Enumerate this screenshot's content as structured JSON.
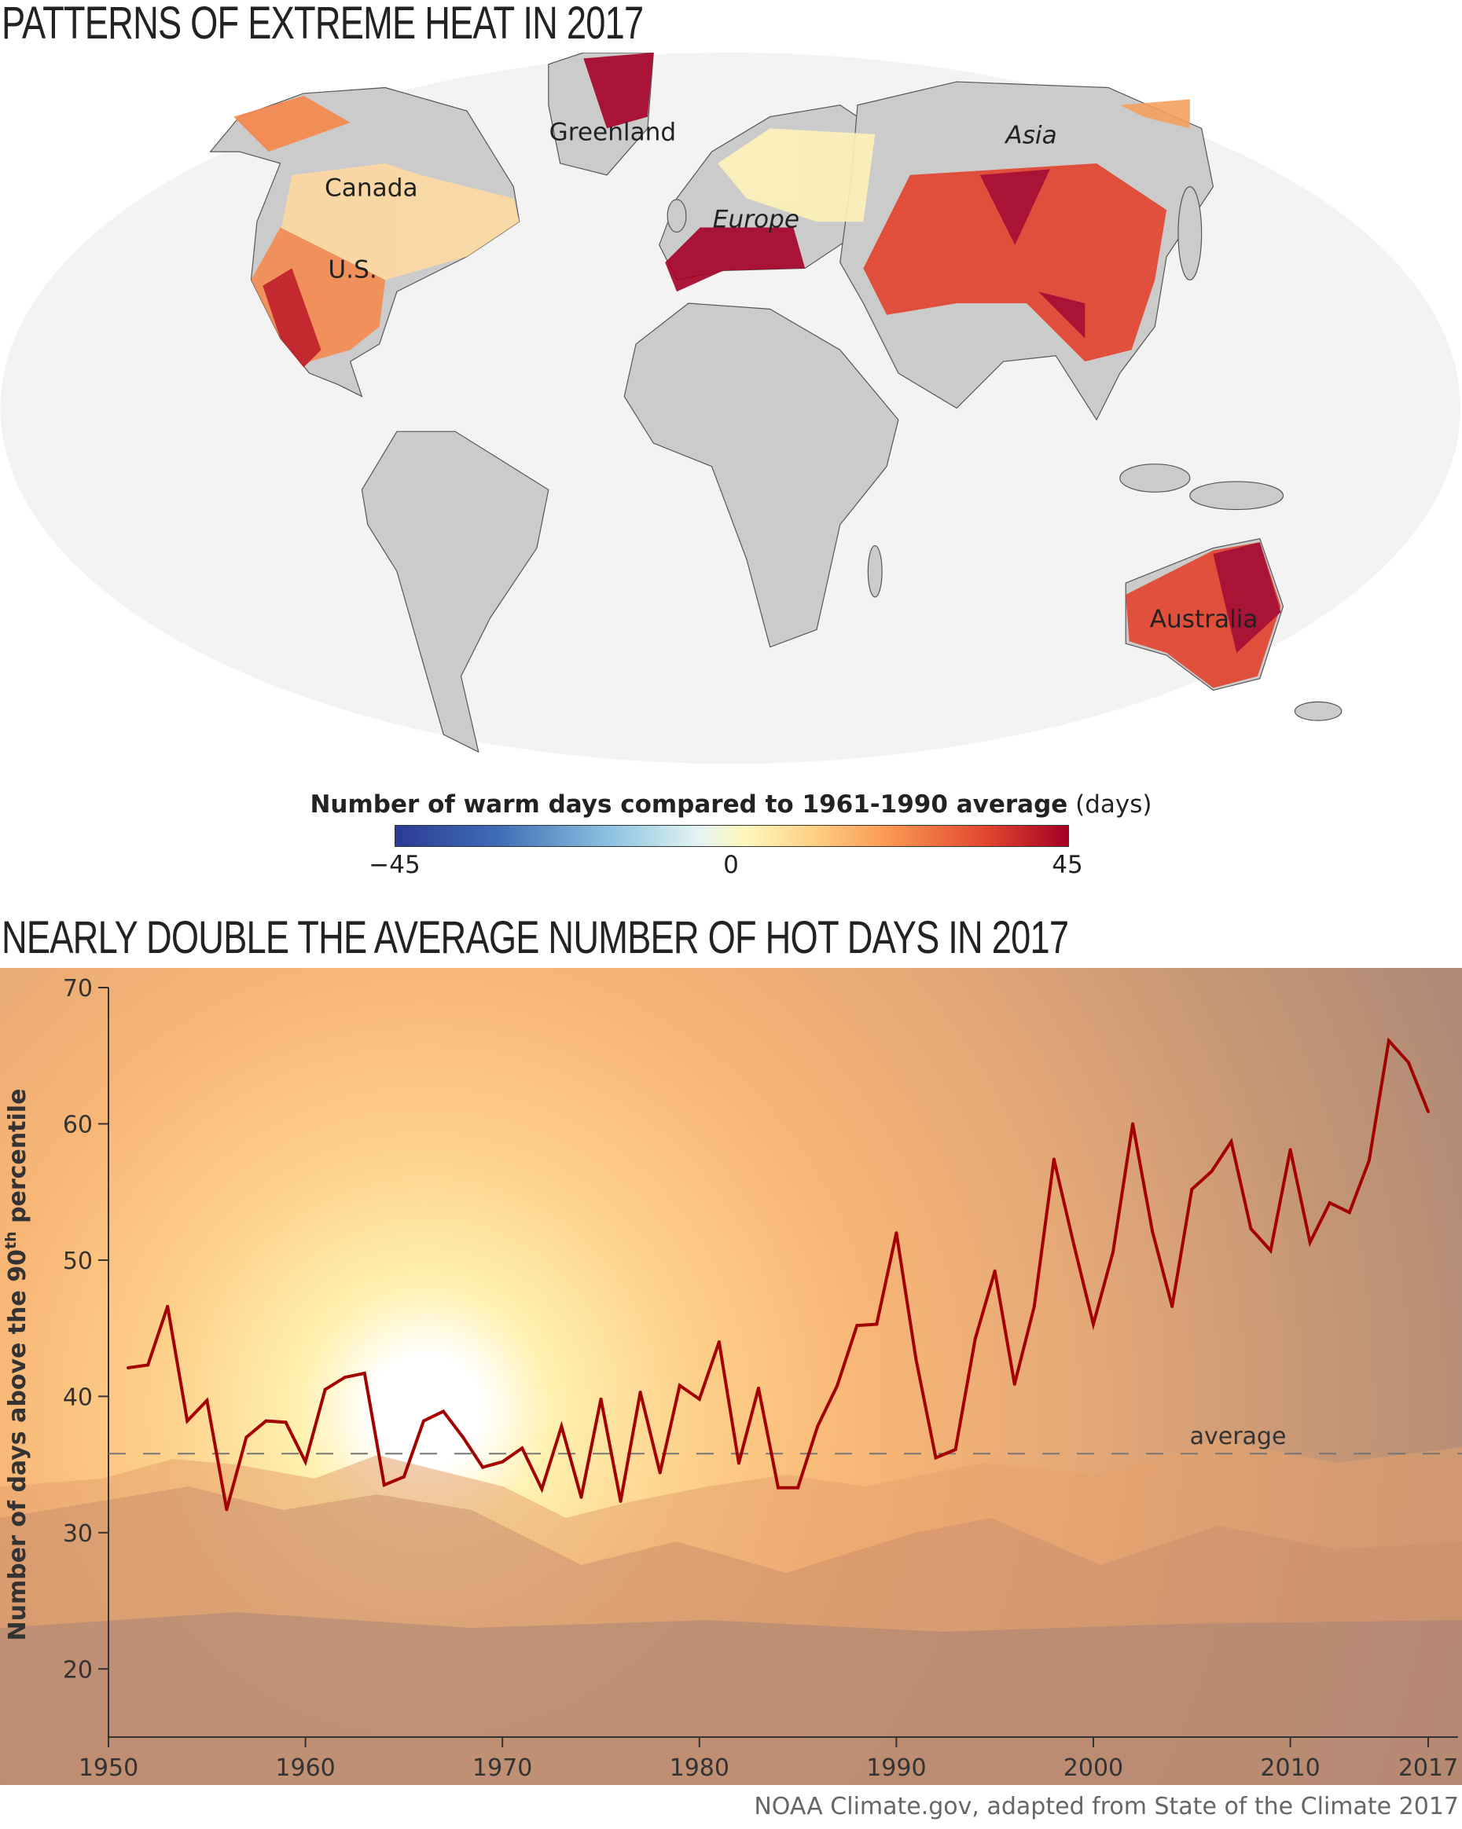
{
  "map": {
    "title": "PATTERNS OF EXTREME HEAT IN 2017",
    "labels": [
      "Greenland",
      "Canada",
      "U.S.",
      "Europe",
      "Asia",
      "Australia"
    ],
    "colorbar": {
      "title_bold": "Number of warm days compared to 1961-1990 average",
      "title_unit": "(days)",
      "ticks": [
        "−45",
        "0",
        "45"
      ],
      "range": [
        -45,
        45
      ]
    }
  },
  "chart_data": {
    "type": "line",
    "title": "NEARLY DOUBLE THE AVERAGE NUMBER OF HOT DAYS IN 2017",
    "ylabel_main": "Number of days above the 90",
    "ylabel_sup": "th",
    "ylabel_end": " percentile",
    "xlabel": "",
    "xlim": [
      1950,
      2017
    ],
    "ylim": [
      15,
      70
    ],
    "xticks": [
      "1950",
      "1960",
      "1970",
      "1980",
      "1990",
      "2000",
      "2010",
      "2017"
    ],
    "yticks": [
      "70",
      "60",
      "50",
      "40",
      "30",
      "20"
    ],
    "average": 35.8,
    "average_label": "average",
    "series": [
      {
        "name": "Hot days",
        "color": "#a30000",
        "x": [
          1951,
          1952,
          1953,
          1954,
          1955,
          1956,
          1957,
          1958,
          1959,
          1960,
          1961,
          1962,
          1963,
          1964,
          1965,
          1966,
          1967,
          1968,
          1969,
          1970,
          1971,
          1972,
          1973,
          1974,
          1975,
          1976,
          1977,
          1978,
          1979,
          1980,
          1981,
          1982,
          1983,
          1984,
          1985,
          1986,
          1987,
          1988,
          1989,
          1990,
          1991,
          1992,
          1993,
          1994,
          1995,
          1996,
          1997,
          1998,
          1999,
          2000,
          2001,
          2002,
          2003,
          2004,
          2005,
          2006,
          2007,
          2008,
          2009,
          2010,
          2011,
          2012,
          2013,
          2014,
          2015,
          2016,
          2017
        ],
        "values": [
          42.1,
          42.3,
          46.6,
          38.2,
          39.7,
          31.7,
          37.0,
          38.2,
          38.1,
          35.2,
          40.5,
          41.4,
          41.7,
          33.5,
          34.1,
          38.2,
          38.9,
          37.0,
          34.8,
          35.2,
          36.2,
          33.2,
          37.8,
          32.6,
          39.8,
          32.3,
          40.3,
          34.4,
          40.8,
          39.8,
          44.0,
          35.1,
          40.6,
          33.3,
          33.3,
          37.8,
          40.8,
          45.2,
          45.3,
          52.0,
          42.7,
          35.5,
          36.1,
          44.2,
          49.2,
          40.9,
          46.6,
          57.4,
          51.2,
          45.3,
          50.6,
          60.0,
          52.1,
          46.6,
          55.2,
          56.5,
          58.7,
          52.3,
          50.7,
          58.1,
          51.3,
          54.2,
          53.5,
          57.3,
          66.1,
          64.5,
          60.9
        ]
      }
    ]
  },
  "source": "NOAA Climate.gov, adapted from State of the Climate 2017"
}
